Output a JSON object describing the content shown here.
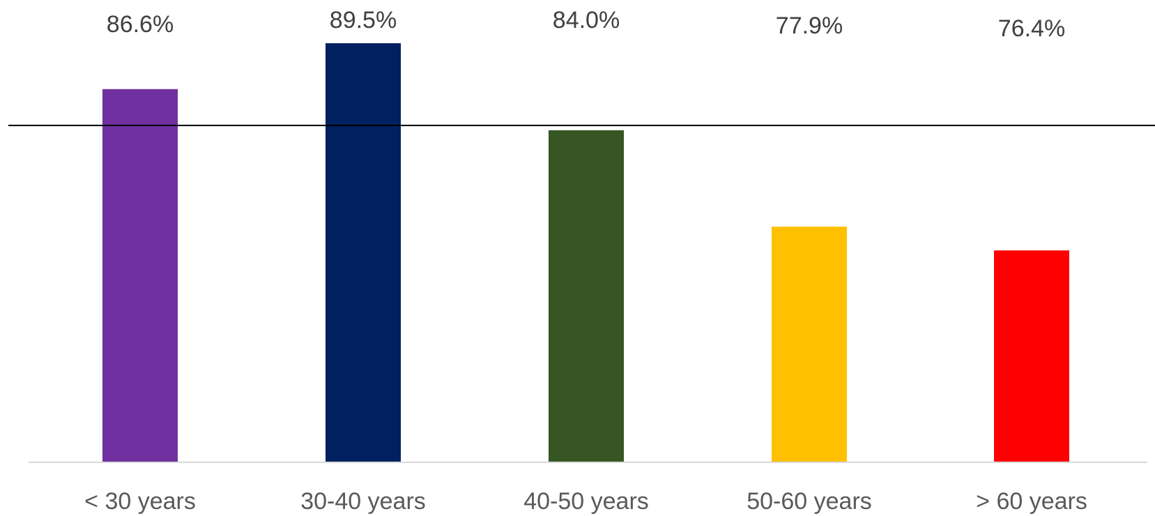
{
  "chart_data": {
    "type": "bar",
    "categories": [
      "< 30 years",
      "30-40 years",
      "40-50 years",
      "50-60 years",
      "> 60 years"
    ],
    "values": [
      86.6,
      89.5,
      84.0,
      77.9,
      76.4
    ],
    "data_labels": [
      "86.6%",
      "89.5%",
      "84.0%",
      "77.9%",
      "76.4%"
    ],
    "colors": [
      "#7030A0",
      "#002060",
      "#375623",
      "#FFC000",
      "#FF0000"
    ],
    "reference_line": 84.3,
    "ylim": [
      63.0,
      89.5
    ],
    "title": "",
    "xlabel": "",
    "ylabel": "",
    "grid": false,
    "legend": "none"
  }
}
